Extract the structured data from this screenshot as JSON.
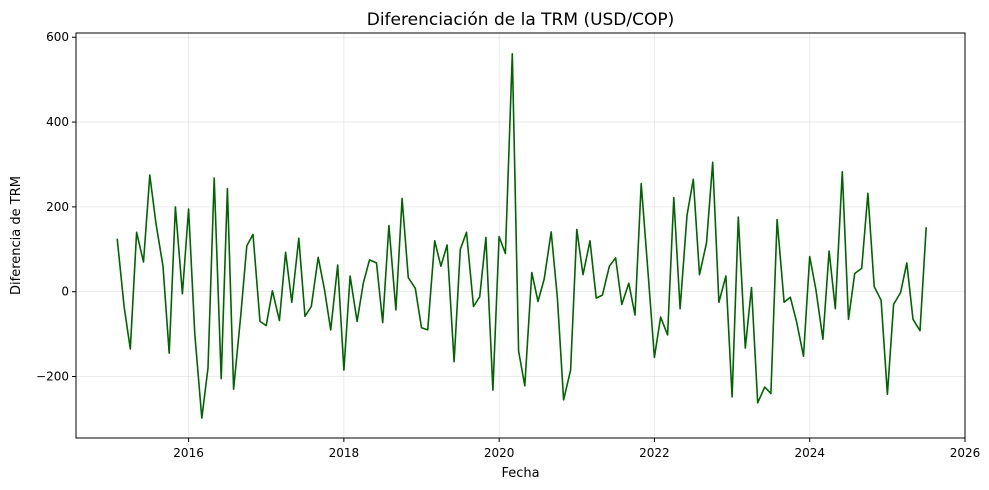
{
  "chart_data": {
    "type": "line",
    "title": "Diferenciación de la TRM (USD/COP)",
    "xlabel": "Fecha",
    "ylabel": "Diferencia de TRM",
    "xlim": [
      2014.55,
      2026.0
    ],
    "ylim": [
      -345,
      610
    ],
    "x_ticks": [
      2016,
      2018,
      2020,
      2022,
      2024,
      2026
    ],
    "x_tick_labels": [
      "2016",
      "2018",
      "2020",
      "2022",
      "2024",
      "2026"
    ],
    "y_ticks": [
      -200,
      0,
      200,
      400,
      600
    ],
    "y_tick_labels": [
      "−200",
      "0",
      "200",
      "400",
      "600"
    ],
    "grid": true,
    "color": "#006400",
    "series": [
      {
        "x": [
          2015.08,
          2015.17,
          2015.25,
          2015.33,
          2015.42,
          2015.5,
          2015.58,
          2015.67,
          2015.75,
          2015.83,
          2015.92,
          2016.0,
          2016.08,
          2016.17,
          2016.25,
          2016.33,
          2016.42,
          2016.5,
          2016.58,
          2016.67,
          2016.75,
          2016.83,
          2016.92,
          2017.0,
          2017.08,
          2017.17,
          2017.25,
          2017.33,
          2017.42,
          2017.5,
          2017.58,
          2017.67,
          2017.75,
          2017.83,
          2017.92,
          2018.0,
          2018.08,
          2018.17,
          2018.25,
          2018.33,
          2018.42,
          2018.5,
          2018.58,
          2018.67,
          2018.75,
          2018.83,
          2018.92,
          2019.0,
          2019.08,
          2019.17,
          2019.25,
          2019.33,
          2019.42,
          2019.5,
          2019.58,
          2019.67,
          2019.75,
          2019.83,
          2019.92,
          2020.0,
          2020.08,
          2020.17,
          2020.25,
          2020.33,
          2020.42,
          2020.5,
          2020.58,
          2020.67,
          2020.75,
          2020.83,
          2020.92,
          2021.0,
          2021.08,
          2021.17,
          2021.25,
          2021.33,
          2021.42,
          2021.5,
          2021.58,
          2021.67,
          2021.75,
          2021.83,
          2021.92,
          2022.0,
          2022.08,
          2022.17,
          2022.25,
          2022.33,
          2022.42,
          2022.5,
          2022.58,
          2022.67,
          2022.75,
          2022.83,
          2022.92,
          2023.0,
          2023.08,
          2023.17,
          2023.25,
          2023.33,
          2023.42,
          2023.5,
          2023.58,
          2023.67,
          2023.75,
          2023.83,
          2023.92,
          2024.0,
          2024.08,
          2024.17,
          2024.25,
          2024.33,
          2024.42,
          2024.5,
          2024.58,
          2024.67,
          2024.75,
          2024.83,
          2024.92,
          2025.0,
          2025.08,
          2025.17,
          2025.25,
          2025.33,
          2025.42,
          2025.5
        ],
        "y": [
          125,
          -35,
          -135,
          140,
          70,
          275,
          160,
          60,
          -145,
          200,
          -5,
          195,
          -100,
          -298,
          -180,
          268,
          -205,
          243,
          -230,
          -60,
          108,
          135,
          -70,
          -80,
          2,
          -68,
          93,
          -25,
          126,
          -58,
          -35,
          81,
          5,
          -90,
          63,
          -185,
          37,
          -70,
          20,
          75,
          68,
          -73,
          156,
          -43,
          220,
          33,
          8,
          -85,
          -90,
          120,
          60,
          110,
          -165,
          100,
          140,
          -35,
          -12,
          128,
          -232,
          130,
          90,
          561,
          -140,
          -222,
          45,
          -23,
          30,
          141,
          -15,
          -255,
          -185,
          147,
          40,
          120,
          -15,
          -8,
          60,
          80,
          -30,
          20,
          -55,
          255,
          40,
          -155,
          -60,
          -102,
          222,
          -40,
          180,
          265,
          40,
          115,
          305,
          -25,
          37,
          -248,
          176,
          -133,
          10,
          -262,
          -225,
          -240,
          170,
          -25,
          -13,
          -70,
          -152,
          83,
          5,
          -112,
          96,
          -40,
          283,
          -65,
          43,
          55,
          232,
          12,
          -20,
          -242,
          -30,
          -2,
          68,
          -65,
          -92,
          152
        ]
      }
    ]
  }
}
